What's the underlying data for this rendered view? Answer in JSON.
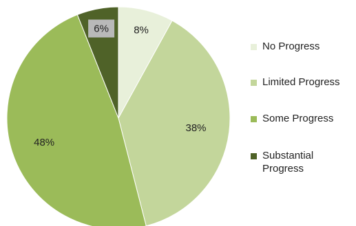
{
  "chart_data": {
    "type": "pie",
    "title": "",
    "start_angle_deg": 0,
    "direction": "clockwise",
    "legend_position": "right",
    "slices": [
      {
        "label": "No Progress",
        "value": 8,
        "display": "8%",
        "color": "#e8f0da"
      },
      {
        "label": "Limited Progress",
        "value": 38,
        "display": "38%",
        "color": "#c3d69b"
      },
      {
        "label": "Some Progress",
        "value": 48,
        "display": "48%",
        "color": "#9bbb59"
      },
      {
        "label": "Substantial Progress",
        "value": 6,
        "display": "6%",
        "color": "#4f6228"
      }
    ]
  }
}
